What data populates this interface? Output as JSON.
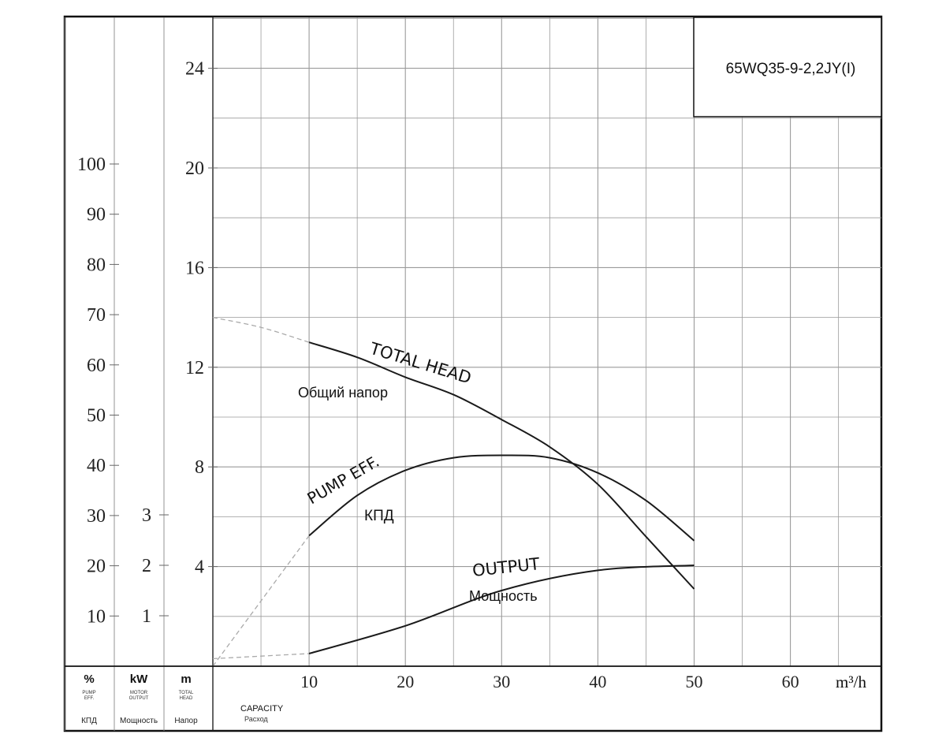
{
  "chart_data": {
    "type": "line",
    "title": "65WQ35-9-2,2JY(I)",
    "x_axis": {
      "unit": "m³/h",
      "ticks": [
        10,
        20,
        30,
        40,
        50,
        60
      ],
      "range": [
        0,
        70
      ],
      "label_en": "CAPACITY",
      "label_ru": "Расход"
    },
    "y_axes": [
      {
        "key": "percent",
        "unit": "%",
        "ticks": [
          10,
          20,
          30,
          40,
          50,
          60,
          70,
          80,
          90,
          100
        ],
        "label_en": "PUMP EFF.",
        "label_ru": "КПД"
      },
      {
        "key": "kw",
        "unit": "kW",
        "ticks": [
          1,
          2,
          3
        ],
        "label_en": "MOTOR OUTPUT",
        "label_ru": "Мощность"
      },
      {
        "key": "head",
        "unit": "m",
        "ticks": [
          4,
          8,
          12,
          16,
          20,
          24
        ],
        "range": [
          0,
          26
        ],
        "label_en": "TOTAL HEAD",
        "label_ru": "Напор"
      }
    ],
    "series": [
      {
        "name": "TOTAL HEAD",
        "name_ru": "Общий напор",
        "axis": "head",
        "x": [
          10,
          15,
          20,
          25,
          30,
          35,
          40,
          45,
          50
        ],
        "y": [
          13.0,
          12.4,
          11.6,
          10.9,
          9.9,
          8.8,
          7.3,
          5.2,
          3.1
        ],
        "extrapolated": {
          "x": [
            0,
            5,
            10
          ],
          "y": [
            14.0,
            13.6,
            13.0
          ]
        }
      },
      {
        "name": "PUMP EFF.",
        "name_ru": "КПД",
        "axis": "percent",
        "x": [
          10,
          15,
          20,
          25,
          30,
          35,
          40,
          45,
          50
        ],
        "y": [
          26,
          34,
          39,
          41.5,
          42,
          41.5,
          38.5,
          33,
          25
        ],
        "extrapolated": {
          "x": [
            0,
            5,
            10
          ],
          "y": [
            0,
            13,
            26
          ]
        }
      },
      {
        "name": "OUTPUT",
        "name_ru": "Мощность",
        "axis": "kw",
        "x": [
          10,
          20,
          30,
          40,
          50
        ],
        "y": [
          0.25,
          0.8,
          1.5,
          1.9,
          2.0
        ],
        "extrapolated": {
          "x": [
            0,
            5,
            10
          ],
          "y": [
            0.15,
            0.2,
            0.25
          ]
        }
      }
    ],
    "grid": true,
    "legend": "none"
  },
  "labels": {
    "head_en": "TOTAL HEAD",
    "head_ru": "Общий напор",
    "eff_en": "PUMP EFF.",
    "eff_ru": "КПД",
    "output_en": "OUTPUT",
    "output_ru": "Мощность"
  },
  "footer": {
    "col1_unit": "%",
    "col1_small_a": "PUMP",
    "col1_small_b": "EFF.",
    "col1_ru": "КПД",
    "col2_unit": "kW",
    "col2_small_a": "MOTOR",
    "col2_small_b": "OUTPUT",
    "col2_ru": "Мощность",
    "col3_unit": "m",
    "col3_small_a": "TOTAL",
    "col3_small_b": "HEAD",
    "col3_ru": "Напор",
    "capacity_en": "CAPACITY",
    "capacity_ru": "Расход",
    "x_unit": "m³/h"
  }
}
